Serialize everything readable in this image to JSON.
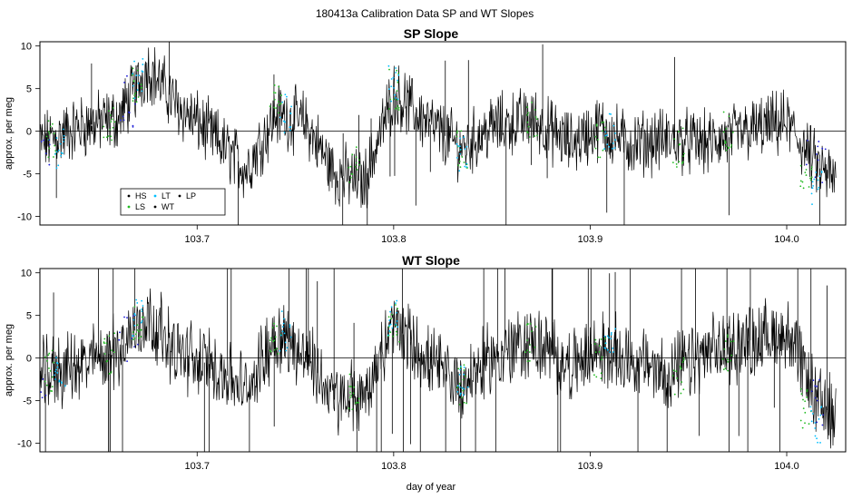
{
  "figure_title": "180413a   Calibration Data SP and WT Slopes",
  "legend": {
    "entries": [
      {
        "label": "HS",
        "color": "#000000"
      },
      {
        "label": "LT",
        "color": "#00bfff"
      },
      {
        "label": "LP",
        "color": "#000000"
      },
      {
        "label": "LS",
        "color": "#22bb22"
      },
      {
        "label": "WT",
        "color": "#000000"
      }
    ]
  },
  "chart_data": [
    {
      "type": "line",
      "title": "SP Slope",
      "xlabel": "",
      "ylabel": "approx. per meg",
      "xlim": [
        103.62,
        104.03
      ],
      "ylim": [
        -11,
        10.5
      ],
      "xticks": [
        "103.7",
        "103.8",
        "103.9",
        "104.0"
      ],
      "yticks": [
        "-10",
        "-5",
        "0",
        "5",
        "10"
      ],
      "reference_line_y": 0,
      "series": [
        {
          "type": "line",
          "x": [
            103.62,
            103.64,
            103.66,
            103.675,
            103.69,
            103.71,
            103.725,
            103.74,
            103.755,
            103.77,
            103.785,
            103.8,
            103.82,
            103.835,
            103.85,
            103.87,
            103.89,
            103.905,
            103.92,
            103.94,
            103.96,
            103.98,
            104.0,
            104.015,
            104.025
          ],
          "values": [
            -1.5,
            0.5,
            1.5,
            7.5,
            3.0,
            -1.0,
            -4.5,
            2.0,
            1.0,
            -5.0,
            -6.0,
            4.5,
            0.5,
            -2.0,
            0.5,
            1.5,
            -1.5,
            0.5,
            -1.5,
            -1.0,
            -1.5,
            0.0,
            1.0,
            -4.0,
            -6.0
          ]
        },
        {
          "name": "LS",
          "type": "scatter",
          "x": [
            103.625,
            103.655,
            103.67,
            103.74,
            103.78,
            103.8,
            103.835,
            103.87,
            103.905,
            103.945,
            103.97,
            104.01
          ],
          "values": [
            -1.0,
            1.0,
            5.0,
            3.0,
            -4.0,
            5.0,
            -2.0,
            1.0,
            -1.0,
            -2.0,
            0.0,
            -5.0
          ]
        },
        {
          "name": "LT",
          "type": "scatter",
          "x": [
            103.63,
            103.67,
            103.745,
            103.8,
            103.835,
            103.91,
            104.015
          ],
          "values": [
            -2.0,
            6.0,
            2.0,
            6.0,
            -3.0,
            0.0,
            -7.0
          ]
        }
      ]
    },
    {
      "type": "line",
      "title": "WT Slope",
      "xlabel": "day of year",
      "ylabel": "approx. per meg",
      "xlim": [
        103.62,
        104.03
      ],
      "ylim": [
        -11,
        10.5
      ],
      "xticks": [
        "103.7",
        "103.8",
        "103.9",
        "104.0"
      ],
      "yticks": [
        "-10",
        "-5",
        "0",
        "5",
        "10"
      ],
      "reference_line_y": 0,
      "series": [
        {
          "type": "line",
          "x": [
            103.62,
            103.64,
            103.66,
            103.675,
            103.69,
            103.71,
            103.725,
            103.74,
            103.755,
            103.77,
            103.785,
            103.8,
            103.82,
            103.835,
            103.85,
            103.87,
            103.89,
            103.905,
            103.92,
            103.94,
            103.96,
            103.98,
            104.0,
            104.015,
            104.025
          ],
          "values": [
            -2.0,
            -1.0,
            1.0,
            5.0,
            0.5,
            -1.0,
            -4.0,
            3.0,
            0.5,
            -5.0,
            -4.5,
            4.0,
            -1.0,
            -3.0,
            0.0,
            2.0,
            -1.0,
            1.0,
            0.0,
            -2.0,
            0.5,
            2.0,
            3.0,
            -5.0,
            -7.0
          ]
        },
        {
          "name": "LS",
          "type": "scatter",
          "x": [
            103.625,
            103.655,
            103.67,
            103.74,
            103.78,
            103.8,
            103.835,
            103.87,
            103.905,
            103.945,
            103.97,
            104.01
          ],
          "values": [
            -1.5,
            0.5,
            4.0,
            3.0,
            -4.0,
            4.0,
            -3.0,
            2.0,
            0.0,
            -2.0,
            1.0,
            -6.0
          ]
        },
        {
          "name": "LT",
          "type": "scatter",
          "x": [
            103.63,
            103.67,
            103.745,
            103.8,
            103.835,
            103.91,
            104.015
          ],
          "values": [
            -1.0,
            5.0,
            3.0,
            5.0,
            -3.0,
            1.0,
            -8.0
          ]
        }
      ]
    }
  ]
}
